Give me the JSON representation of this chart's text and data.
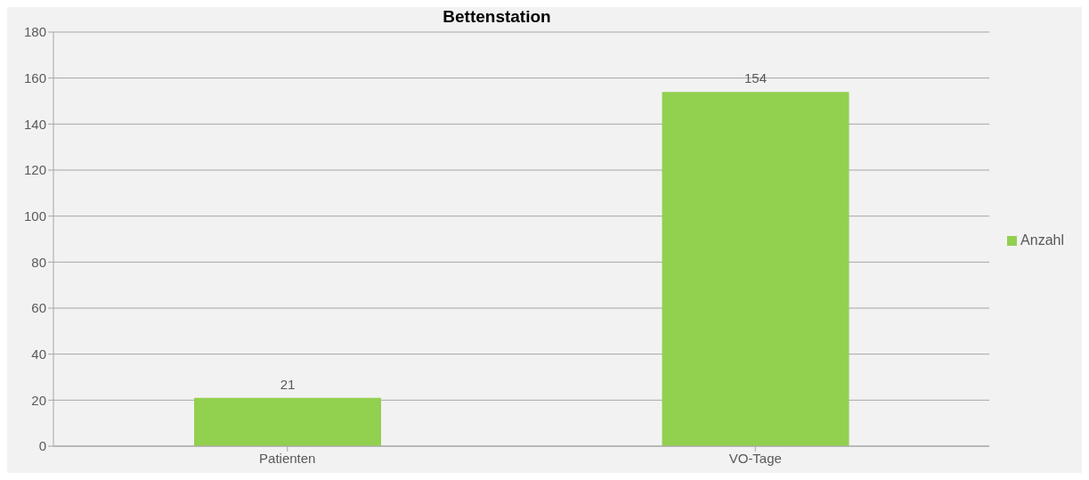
{
  "chart_data": {
    "type": "bar",
    "title": "Bettenstation",
    "categories": [
      "Patienten",
      "VO-Tage"
    ],
    "series": [
      {
        "name": "Anzahl",
        "color": "#92d050",
        "values": [
          21,
          154
        ]
      }
    ],
    "ylim": [
      0,
      180
    ],
    "yticks": [
      0,
      20,
      40,
      60,
      80,
      100,
      120,
      140,
      160,
      180
    ],
    "grid": "y",
    "legend": "right",
    "data_labels": true
  }
}
